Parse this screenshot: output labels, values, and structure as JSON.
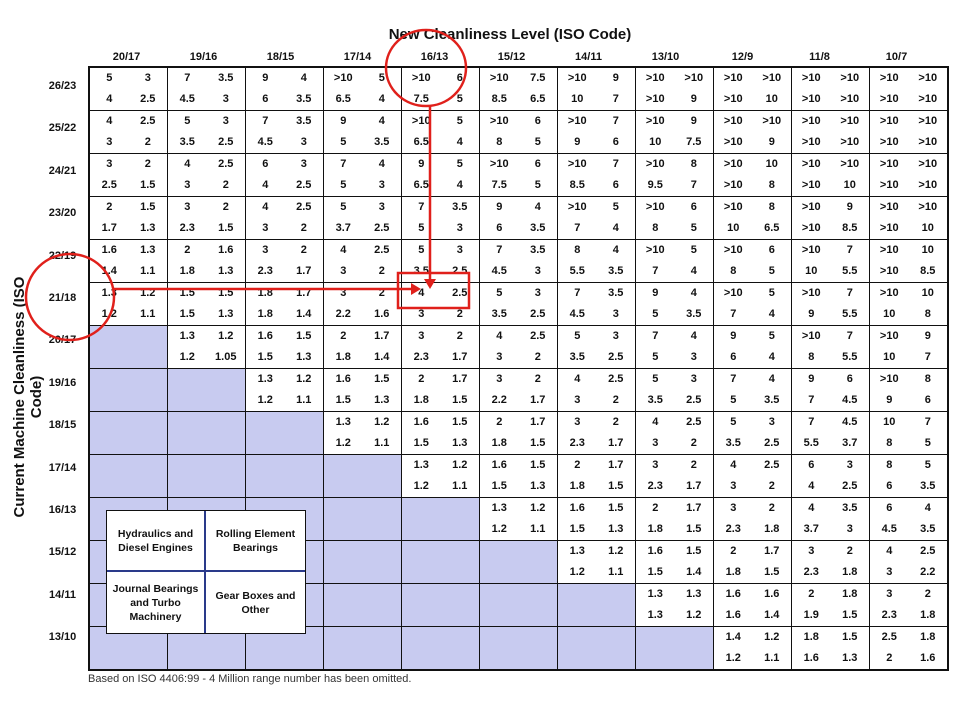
{
  "title": "New Cleanliness Level (ISO Code)",
  "ylabel": "Current Machine Cleanliness (ISO Code)",
  "footnote": "Based on ISO 4406:99 - 4 Million range number has been omitted.",
  "legend": {
    "top_left": "Hydraulics and Diesel Engines",
    "top_right": "Rolling Element Bearings",
    "bottom_left": "Journal Bearings and Turbo Machinery",
    "bottom_right": "Gear Boxes and Other"
  },
  "colors": {
    "grid": "#111111",
    "empty_cell": "#c8cbf0",
    "highlight": "#e0201b",
    "legend_divider": "#2a3a8a"
  },
  "chart_data": {
    "type": "table",
    "columns": [
      "20/17",
      "19/16",
      "18/15",
      "17/14",
      "16/13",
      "15/12",
      "14/11",
      "13/10",
      "12/9",
      "11/8",
      "10/7"
    ],
    "rows": [
      "26/23",
      "25/22",
      "24/21",
      "23/20",
      "22/19",
      "21/18",
      "20/17",
      "19/16",
      "18/15",
      "17/14",
      "16/13",
      "15/12",
      "14/11",
      "13/10"
    ],
    "cells": [
      [
        [
          "5",
          "3",
          "4",
          "2.5"
        ],
        [
          "7",
          "3.5",
          "4.5",
          "3"
        ],
        [
          "9",
          "4",
          "6",
          "3.5"
        ],
        [
          ">10",
          "5",
          "6.5",
          "4"
        ],
        [
          ">10",
          "6",
          "7.5",
          "5"
        ],
        [
          ">10",
          "7.5",
          "8.5",
          "6.5"
        ],
        [
          ">10",
          "9",
          "10",
          "7"
        ],
        [
          ">10",
          ">10",
          ">10",
          "9"
        ],
        [
          ">10",
          ">10",
          ">10",
          "10"
        ],
        [
          ">10",
          ">10",
          ">10",
          ">10"
        ],
        [
          ">10",
          ">10",
          ">10",
          ">10"
        ]
      ],
      [
        [
          "4",
          "2.5",
          "3",
          "2"
        ],
        [
          "5",
          "3",
          "3.5",
          "2.5"
        ],
        [
          "7",
          "3.5",
          "4.5",
          "3"
        ],
        [
          "9",
          "4",
          "5",
          "3.5"
        ],
        [
          ">10",
          "5",
          "6.5",
          "4"
        ],
        [
          ">10",
          "6",
          "8",
          "5"
        ],
        [
          ">10",
          "7",
          "9",
          "6"
        ],
        [
          ">10",
          "9",
          "10",
          "7.5"
        ],
        [
          ">10",
          ">10",
          ">10",
          "9"
        ],
        [
          ">10",
          ">10",
          ">10",
          ">10"
        ],
        [
          ">10",
          ">10",
          ">10",
          ">10"
        ]
      ],
      [
        [
          "3",
          "2",
          "2.5",
          "1.5"
        ],
        [
          "4",
          "2.5",
          "3",
          "2"
        ],
        [
          "6",
          "3",
          "4",
          "2.5"
        ],
        [
          "7",
          "4",
          "5",
          "3"
        ],
        [
          "9",
          "5",
          "6.5",
          "4"
        ],
        [
          ">10",
          "6",
          "7.5",
          "5"
        ],
        [
          ">10",
          "7",
          "8.5",
          "6"
        ],
        [
          ">10",
          "8",
          "9.5",
          "7"
        ],
        [
          ">10",
          "10",
          ">10",
          "8"
        ],
        [
          ">10",
          ">10",
          ">10",
          "10"
        ],
        [
          ">10",
          ">10",
          ">10",
          ">10"
        ]
      ],
      [
        [
          "2",
          "1.5",
          "1.7",
          "1.3"
        ],
        [
          "3",
          "2",
          "2.3",
          "1.5"
        ],
        [
          "4",
          "2.5",
          "3",
          "2"
        ],
        [
          "5",
          "3",
          "3.7",
          "2.5"
        ],
        [
          "7",
          "3.5",
          "5",
          "3"
        ],
        [
          "9",
          "4",
          "6",
          "3.5"
        ],
        [
          ">10",
          "5",
          "7",
          "4"
        ],
        [
          ">10",
          "6",
          "8",
          "5"
        ],
        [
          ">10",
          "8",
          "10",
          "6.5"
        ],
        [
          ">10",
          "9",
          ">10",
          "8.5"
        ],
        [
          ">10",
          ">10",
          ">10",
          "10"
        ]
      ],
      [
        [
          "1.6",
          "1.3",
          "1.4",
          "1.1"
        ],
        [
          "2",
          "1.6",
          "1.8",
          "1.3"
        ],
        [
          "3",
          "2",
          "2.3",
          "1.7"
        ],
        [
          "4",
          "2.5",
          "3",
          "2"
        ],
        [
          "5",
          "3",
          "3.5",
          "2.5"
        ],
        [
          "7",
          "3.5",
          "4.5",
          "3"
        ],
        [
          "8",
          "4",
          "5.5",
          "3.5"
        ],
        [
          ">10",
          "5",
          "7",
          "4"
        ],
        [
          ">10",
          "6",
          "8",
          "5"
        ],
        [
          ">10",
          "7",
          "10",
          "5.5"
        ],
        [
          ">10",
          "10",
          ">10",
          "8.5"
        ]
      ],
      [
        [
          "1.3",
          "1.2",
          "1.2",
          "1.1"
        ],
        [
          "1.5",
          "1.5",
          "1.5",
          "1.3"
        ],
        [
          "1.8",
          "1.7",
          "1.8",
          "1.4"
        ],
        [
          "3",
          "2",
          "2.2",
          "1.6"
        ],
        [
          "4",
          "2.5",
          "3",
          "2"
        ],
        [
          "5",
          "3",
          "3.5",
          "2.5"
        ],
        [
          "7",
          "3.5",
          "4.5",
          "3"
        ],
        [
          "9",
          "4",
          "5",
          "3.5"
        ],
        [
          ">10",
          "5",
          "7",
          "4"
        ],
        [
          ">10",
          "7",
          "9",
          "5.5"
        ],
        [
          ">10",
          "10",
          "10",
          "8"
        ]
      ],
      [
        null,
        [
          "1.3",
          "1.2",
          "1.2",
          "1.05"
        ],
        [
          "1.6",
          "1.5",
          "1.5",
          "1.3"
        ],
        [
          "2",
          "1.7",
          "1.8",
          "1.4"
        ],
        [
          "3",
          "2",
          "2.3",
          "1.7"
        ],
        [
          "4",
          "2.5",
          "3",
          "2"
        ],
        [
          "5",
          "3",
          "3.5",
          "2.5"
        ],
        [
          "7",
          "4",
          "5",
          "3"
        ],
        [
          "9",
          "5",
          "6",
          "4"
        ],
        [
          ">10",
          "7",
          "8",
          "5.5"
        ],
        [
          ">10",
          "9",
          "10",
          "7"
        ]
      ],
      [
        null,
        null,
        [
          "1.3",
          "1.2",
          "1.2",
          "1.1"
        ],
        [
          "1.6",
          "1.5",
          "1.5",
          "1.3"
        ],
        [
          "2",
          "1.7",
          "1.8",
          "1.5"
        ],
        [
          "3",
          "2",
          "2.2",
          "1.7"
        ],
        [
          "4",
          "2.5",
          "3",
          "2"
        ],
        [
          "5",
          "3",
          "3.5",
          "2.5"
        ],
        [
          "7",
          "4",
          "5",
          "3.5"
        ],
        [
          "9",
          "6",
          "7",
          "4.5"
        ],
        [
          ">10",
          "8",
          "9",
          "6"
        ]
      ],
      [
        null,
        null,
        null,
        [
          "1.3",
          "1.2",
          "1.2",
          "1.1"
        ],
        [
          "1.6",
          "1.5",
          "1.5",
          "1.3"
        ],
        [
          "2",
          "1.7",
          "1.8",
          "1.5"
        ],
        [
          "3",
          "2",
          "2.3",
          "1.7"
        ],
        [
          "4",
          "2.5",
          "3",
          "2"
        ],
        [
          "5",
          "3",
          "3.5",
          "2.5"
        ],
        [
          "7",
          "4.5",
          "5.5",
          "3.7"
        ],
        [
          "10",
          "7",
          "8",
          "5"
        ]
      ],
      [
        null,
        null,
        null,
        null,
        [
          "1.3",
          "1.2",
          "1.2",
          "1.1"
        ],
        [
          "1.6",
          "1.5",
          "1.5",
          "1.3"
        ],
        [
          "2",
          "1.7",
          "1.8",
          "1.5"
        ],
        [
          "3",
          "2",
          "2.3",
          "1.7"
        ],
        [
          "4",
          "2.5",
          "3",
          "2"
        ],
        [
          "6",
          "3",
          "4",
          "2.5"
        ],
        [
          "8",
          "5",
          "6",
          "3.5"
        ]
      ],
      [
        null,
        null,
        null,
        null,
        null,
        [
          "1.3",
          "1.2",
          "1.2",
          "1.1"
        ],
        [
          "1.6",
          "1.5",
          "1.5",
          "1.3"
        ],
        [
          "2",
          "1.7",
          "1.8",
          "1.5"
        ],
        [
          "3",
          "2",
          "2.3",
          "1.8"
        ],
        [
          "4",
          "3.5",
          "3.7",
          "3"
        ],
        [
          "6",
          "4",
          "4.5",
          "3.5"
        ]
      ],
      [
        null,
        null,
        null,
        null,
        null,
        null,
        [
          "1.3",
          "1.2",
          "1.2",
          "1.1"
        ],
        [
          "1.6",
          "1.5",
          "1.5",
          "1.4"
        ],
        [
          "2",
          "1.7",
          "1.8",
          "1.5"
        ],
        [
          "3",
          "2",
          "2.3",
          "1.8"
        ],
        [
          "4",
          "2.5",
          "3",
          "2.2"
        ]
      ],
      [
        null,
        null,
        null,
        null,
        null,
        null,
        null,
        [
          "1.3",
          "1.3",
          "1.3",
          "1.2"
        ],
        [
          "1.6",
          "1.6",
          "1.6",
          "1.4"
        ],
        [
          "2",
          "1.8",
          "1.9",
          "1.5"
        ],
        [
          "3",
          "2",
          "2.3",
          "1.8"
        ]
      ],
      [
        null,
        null,
        null,
        null,
        null,
        null,
        null,
        null,
        [
          "1.4",
          "1.2",
          "1.2",
          "1.1"
        ],
        [
          "1.8",
          "1.5",
          "1.6",
          "1.3"
        ],
        [
          "2.5",
          "1.8",
          "2",
          "1.6"
        ]
      ]
    ]
  }
}
